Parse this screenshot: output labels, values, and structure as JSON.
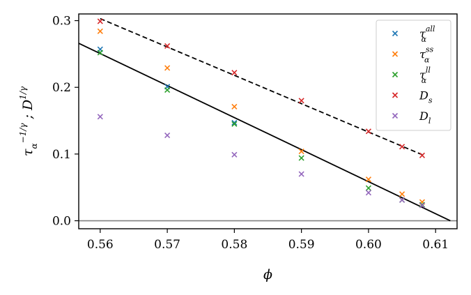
{
  "chart_data": {
    "type": "scatter",
    "xlabel": "ϕ",
    "ylabel": "τα−1/γ ; D1/γ",
    "xlim": [
      0.5568,
      0.6132
    ],
    "ylim": [
      -0.012,
      0.31
    ],
    "x_ticks": [
      "0.56",
      "0.57",
      "0.58",
      "0.59",
      "0.60",
      "0.61"
    ],
    "y_ticks": [
      "0.0",
      "0.1",
      "0.2",
      "0.3"
    ],
    "x_tick_values": [
      0.56,
      0.57,
      0.58,
      0.59,
      0.6,
      0.61
    ],
    "y_tick_values": [
      0.0,
      0.1,
      0.2,
      0.3
    ],
    "legend_position": "top-right",
    "series": [
      {
        "name": "τα all",
        "main": "τ",
        "sub": "α",
        "sup": "all",
        "color": "#1f77b4",
        "x": [
          0.56,
          0.57,
          0.58
        ],
        "y": [
          0.257,
          0.201,
          0.147
        ]
      },
      {
        "name": "τα ss",
        "main": "τ",
        "sub": "α",
        "sup": "ss",
        "color": "#ff7f0e",
        "x": [
          0.56,
          0.57,
          0.58,
          0.59,
          0.6,
          0.605,
          0.608
        ],
        "y": [
          0.284,
          0.229,
          0.171,
          0.104,
          0.062,
          0.04,
          0.028
        ]
      },
      {
        "name": "τα ll",
        "main": "τ",
        "sub": "α",
        "sup": "ll",
        "color": "#2ca02c",
        "x": [
          0.56,
          0.57,
          0.58,
          0.59,
          0.6,
          0.605,
          0.608
        ],
        "y": [
          0.252,
          0.196,
          0.145,
          0.094,
          0.049,
          0.031,
          0.024
        ]
      },
      {
        "name": "Ds",
        "main": "D",
        "sub": "s",
        "sup": "",
        "color": "#d62728",
        "x": [
          0.56,
          0.57,
          0.58,
          0.59,
          0.6,
          0.605,
          0.608
        ],
        "y": [
          0.299,
          0.262,
          0.222,
          0.18,
          0.134,
          0.111,
          0.098
        ]
      },
      {
        "name": "Dl",
        "main": "D",
        "sub": "l",
        "sup": "",
        "color": "#9467bd",
        "x": [
          0.56,
          0.57,
          0.58,
          0.59,
          0.6,
          0.605,
          0.608
        ],
        "y": [
          0.156,
          0.128,
          0.099,
          0.07,
          0.042,
          0.031,
          0.023
        ]
      }
    ],
    "fit_lines": [
      {
        "style": "solid",
        "color": "#000000",
        "x": [
          0.5568,
          0.6122
        ],
        "y": [
          0.266,
          0.0
        ]
      },
      {
        "style": "dashed",
        "color": "#000000",
        "x": [
          0.56,
          0.608
        ],
        "y": [
          0.303,
          0.099
        ]
      }
    ],
    "reference_line": {
      "y": 0.0,
      "color": "#808080"
    }
  }
}
